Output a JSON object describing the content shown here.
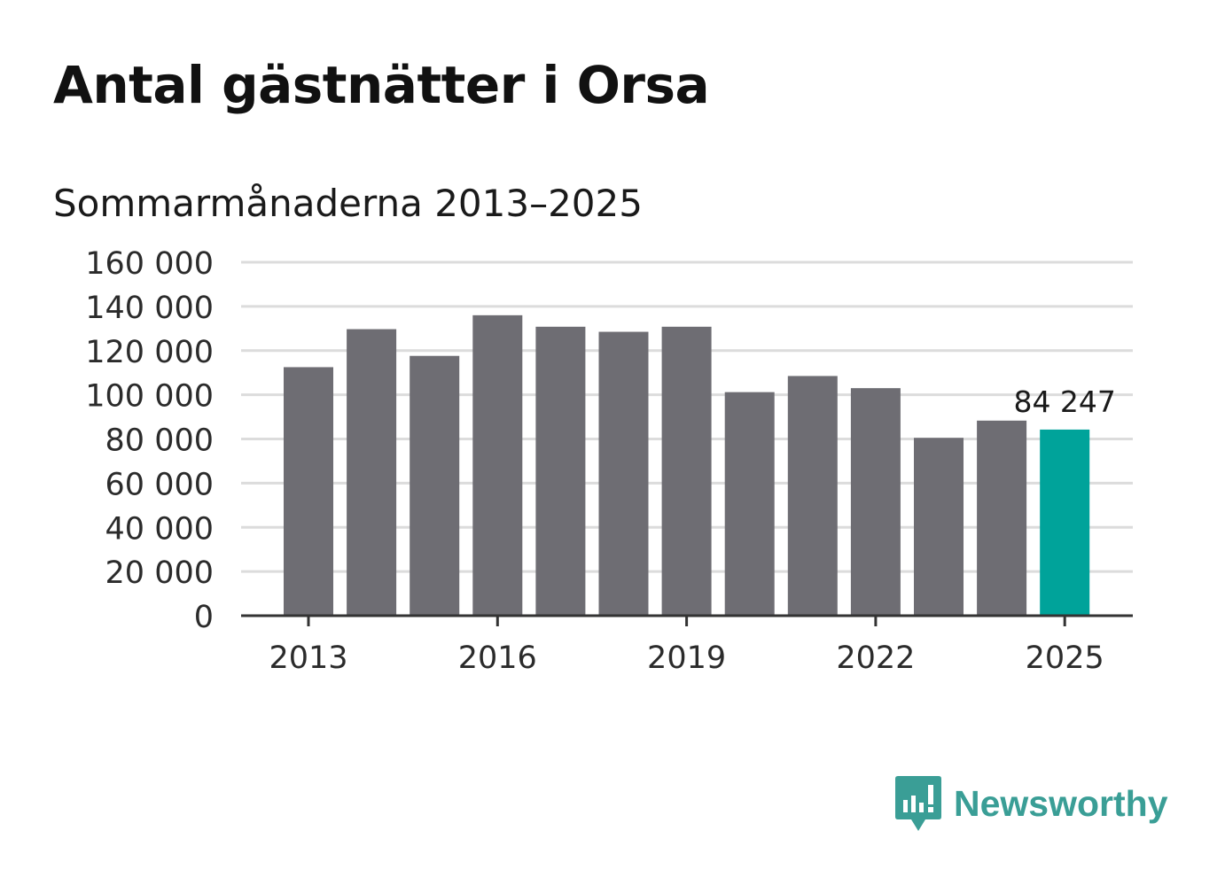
{
  "title": "Antal gästnätter i Orsa",
  "subtitle": "Sommarmånaderna 2013–2025",
  "brand": {
    "name": "Newsworthy",
    "icon": "chart-speech-bubble-icon",
    "color": "#3a9e96"
  },
  "chart_data": {
    "type": "bar",
    "title": "Antal gästnätter i Orsa",
    "subtitle": "Sommarmånaderna 2013–2025",
    "categories": [
      "2013",
      "2014",
      "2015",
      "2016",
      "2017",
      "2018",
      "2019",
      "2020",
      "2021",
      "2022",
      "2023",
      "2024",
      "2025"
    ],
    "values": [
      112500,
      129700,
      117600,
      136000,
      130800,
      128500,
      130800,
      101200,
      108500,
      103000,
      80500,
      88300,
      84247
    ],
    "x_tick_labels": [
      "2013",
      "2016",
      "2019",
      "2022",
      "2025"
    ],
    "y_ticks": [
      0,
      20000,
      40000,
      60000,
      80000,
      100000,
      120000,
      140000,
      160000
    ],
    "y_tick_labels": [
      "0",
      "20 000",
      "40 000",
      "60 000",
      "80 000",
      "100 000",
      "120 000",
      "140 000",
      "160 000"
    ],
    "ylim": [
      0,
      160000
    ],
    "xlabel": "",
    "ylabel": "",
    "grid": true,
    "bar_color": "#6e6d73",
    "highlight_color": "#00a39a",
    "highlight_index": 12,
    "annotation": {
      "category": "2025",
      "text": "84 247"
    }
  }
}
